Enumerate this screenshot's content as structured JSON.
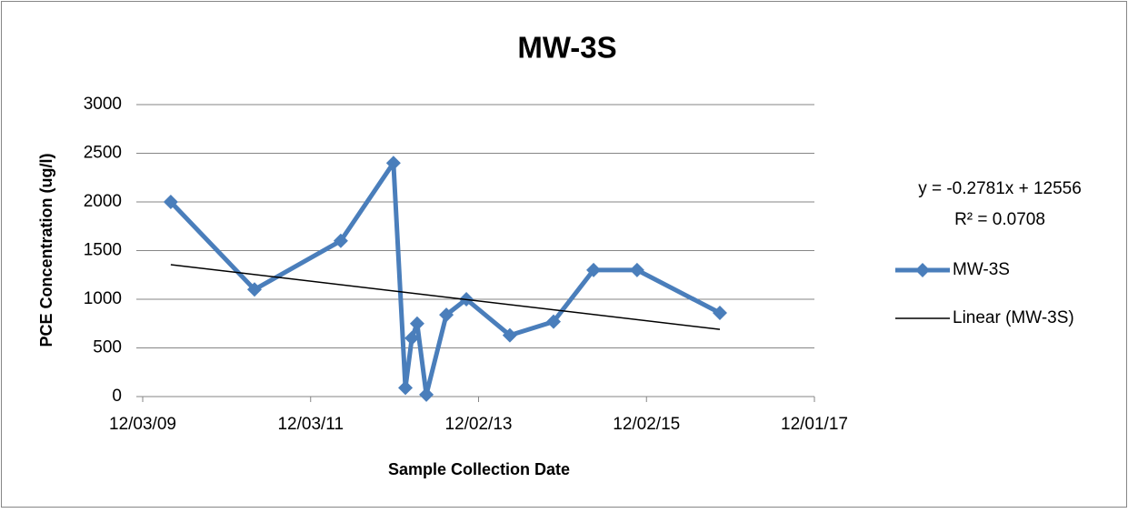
{
  "chart_data": {
    "type": "line",
    "title": "MW-3S",
    "xlabel": "Sample Collection Date",
    "ylabel": "PCE Concentration (ug/l)",
    "x": [
      "04/04/10",
      "04/03/11",
      "04/12/12",
      "11/27/12",
      "01/18/13",
      "02/15/13",
      "03/10/13",
      "04/19/13",
      "07/15/13",
      "10/10/13",
      "04/17/14",
      "10/24/14",
      "04/16/15",
      "10/22/15",
      "10/16/16"
    ],
    "series": [
      {
        "name": "MW-3S",
        "color": "#4a7ebb",
        "values": [
          2000,
          1100,
          1600,
          2400,
          90,
          600,
          750,
          20,
          840,
          1000,
          630,
          770,
          1300,
          1300,
          860
        ]
      },
      {
        "name": "Linear (MW-3S)",
        "color": "#000000",
        "x": [
          "04/04/10",
          "10/16/16"
        ],
        "values": [
          1355,
          690
        ]
      }
    ],
    "annotations": [
      "y = -0.2781x + 12556",
      "R² = 0.0708"
    ],
    "xlim": [
      "12/03/09",
      "12/01/17"
    ],
    "xticks": [
      "12/03/09",
      "12/03/11",
      "12/02/13",
      "12/02/15",
      "12/01/17"
    ],
    "ylim": [
      0,
      3000
    ],
    "yticks": [
      0,
      500,
      1000,
      1500,
      2000,
      2500,
      3000
    ],
    "grid": true,
    "legend": "right"
  }
}
